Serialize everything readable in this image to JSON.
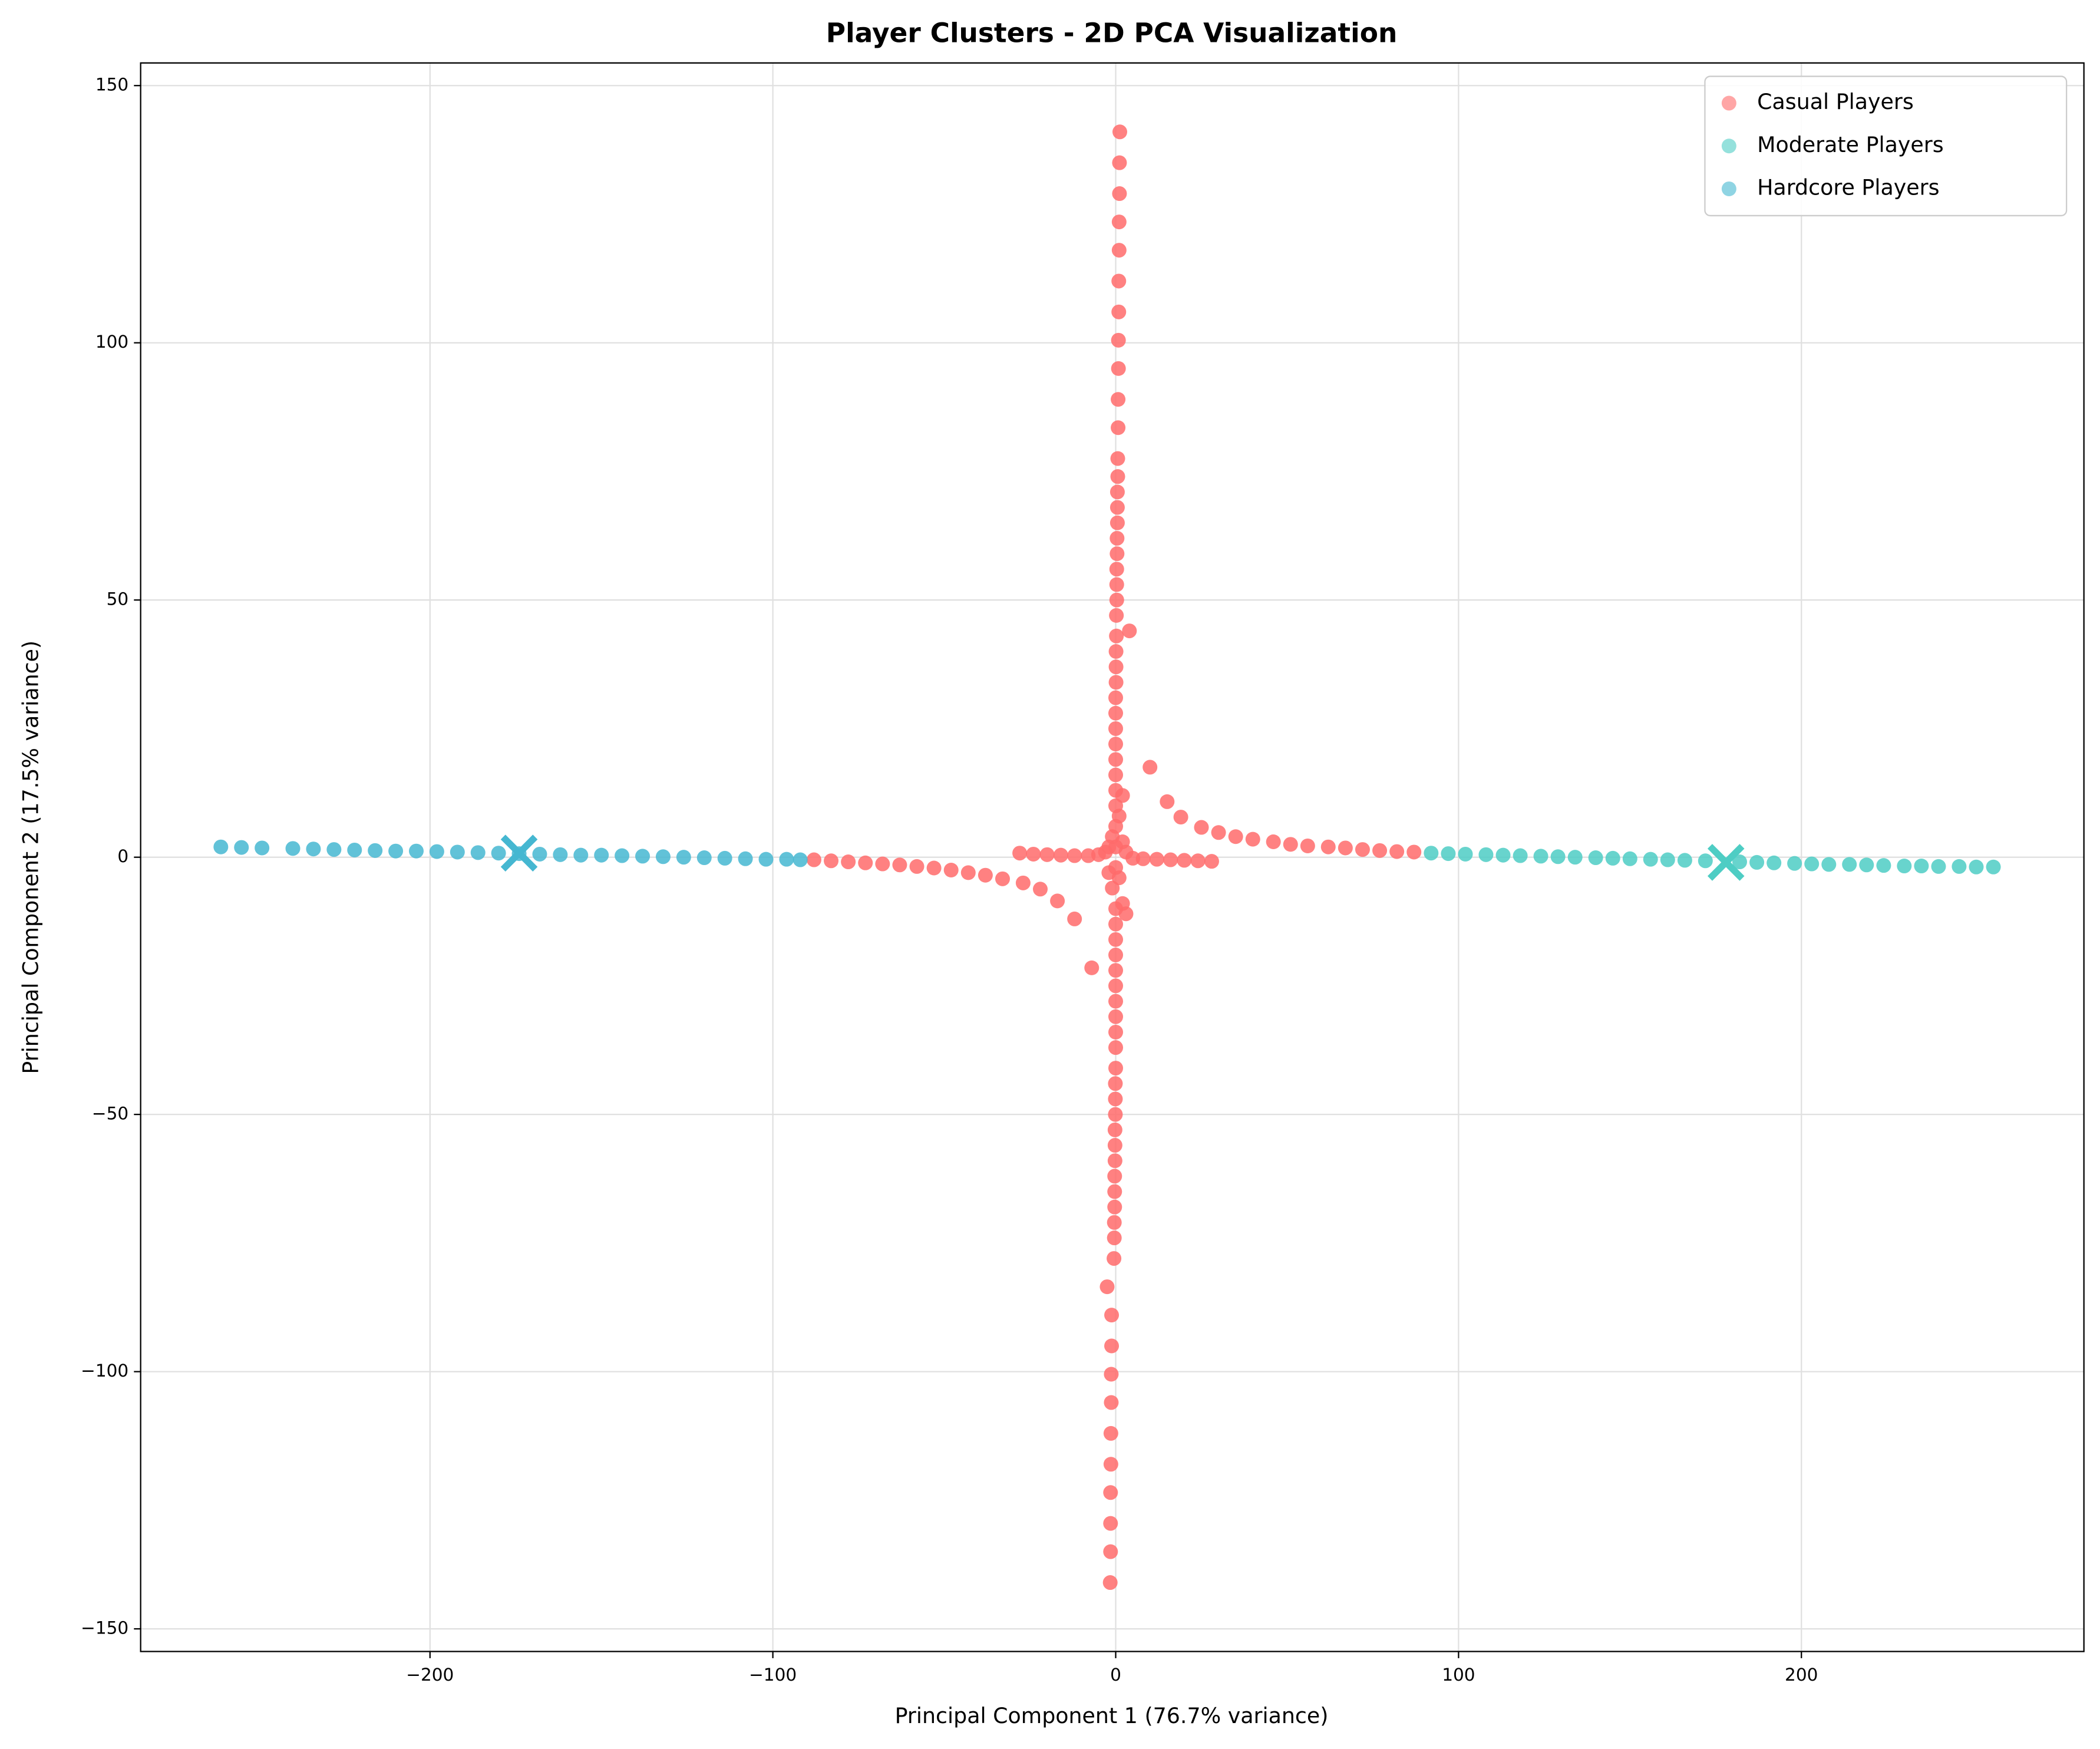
{
  "chart_data": {
    "type": "scatter",
    "title": "Player Clusters - 2D PCA Visualization",
    "xlabel": "Principal Component 1 (76.7% variance)",
    "ylabel": "Principal Component 2 (17.5% variance)",
    "xlim": [
      -284.4,
      282.4
    ],
    "ylim": [
      -154.4,
      154.4
    ],
    "xticks": [
      {
        "value": -200,
        "label": "−200"
      },
      {
        "value": -100,
        "label": "−100"
      },
      0,
      100,
      200
    ],
    "yticks": [
      {
        "value": -150,
        "label": "−150"
      },
      {
        "value": -100,
        "label": "−100"
      },
      {
        "value": -50,
        "label": "−50"
      },
      0,
      50,
      100,
      150
    ],
    "grid": true,
    "legend": "upper right",
    "series": [
      {
        "name": "Casual Players",
        "color": "#ff6b6b",
        "x": [
          1.2,
          1.1,
          1.1,
          1.0,
          1.0,
          0.9,
          0.9,
          0.8,
          0.8,
          0.7,
          0.7,
          0.6,
          0.6,
          0.5,
          0.5,
          0.5,
          0.4,
          0.4,
          0.3,
          0.3,
          0.3,
          0.2,
          0.2,
          0.1,
          0.1,
          0.1,
          0,
          0,
          0,
          0,
          0,
          0,
          0,
          0,
          4,
          -2.5,
          -1.2,
          -1.2,
          -1.3,
          -1.3,
          -1.4,
          -1.4,
          -1.5,
          -1.5,
          -1.5,
          -1.6,
          -0.5,
          -0.4,
          -0.4,
          -0.3,
          -0.3,
          -0.3,
          -0.2,
          -0.2,
          -0.2,
          -0.1,
          -0.1,
          -0.1,
          0,
          0,
          0,
          0,
          0,
          0,
          0,
          0,
          0,
          0,
          0,
          10,
          15,
          19,
          25,
          30,
          35,
          40,
          46,
          51,
          56,
          62,
          67,
          72,
          77,
          82,
          87,
          -7,
          -12,
          -17,
          -22,
          -27,
          -33,
          -38,
          -43,
          -48,
          -53,
          -58,
          -63,
          -68,
          -73,
          -78,
          -83,
          -88,
          -28,
          -24,
          -20,
          -16,
          -12,
          -8,
          -5,
          -3,
          -2,
          -1,
          0,
          1,
          2,
          3,
          5,
          8,
          12,
          16,
          20,
          24,
          28,
          -2,
          -1,
          1,
          2,
          3,
          2,
          0,
          0
        ],
        "y": [
          141,
          135,
          129,
          123.5,
          118,
          112,
          106,
          100.5,
          95,
          89,
          83.5,
          77.5,
          74,
          71,
          68,
          65,
          62,
          59,
          56,
          53,
          50,
          47,
          43,
          40,
          37,
          34,
          31,
          28,
          25,
          22,
          19,
          16,
          13,
          10,
          44,
          -83.5,
          -89,
          -95,
          -100.5,
          -106,
          -112,
          -118,
          -123.5,
          -129.5,
          -135,
          -141,
          -78,
          -74,
          -71,
          -68,
          -65,
          -62,
          -59,
          -56,
          -53,
          -50,
          -47,
          -44,
          -41,
          -37,
          -34,
          -31,
          -28,
          -25,
          -22,
          -19,
          -16,
          -13,
          -10,
          17.5,
          10.8,
          7.8,
          5.8,
          4.8,
          4,
          3.5,
          3,
          2.5,
          2.2,
          2,
          1.8,
          1.5,
          1.3,
          1.1,
          1,
          -21.5,
          -12,
          -8.5,
          -6.2,
          -5,
          -4.2,
          -3.5,
          -3,
          -2.5,
          -2.1,
          -1.8,
          -1.5,
          -1.3,
          -1.1,
          -0.9,
          -0.7,
          -0.5,
          0.8,
          0.6,
          0.5,
          0.4,
          0.3,
          0.3,
          0.5,
          1,
          2,
          4,
          6,
          8,
          3,
          1,
          -0.2,
          -0.3,
          -0.4,
          -0.5,
          -0.6,
          -0.7,
          -0.8,
          -3,
          -6,
          -4,
          -9,
          -11,
          12,
          2,
          -2
        ]
      },
      {
        "name": "Moderate Players",
        "color": "#4ecdc4",
        "centroid": [
          178,
          -1
        ],
        "x": [
          92,
          97,
          102,
          108,
          113,
          118,
          124,
          129,
          134,
          140,
          145,
          150,
          156,
          161,
          166,
          172,
          182,
          187,
          192,
          198,
          203,
          208,
          214,
          219,
          224,
          230,
          235,
          240,
          246,
          251,
          256
        ],
        "y": [
          0.8,
          0.7,
          0.6,
          0.5,
          0.4,
          0.3,
          0.2,
          0.1,
          0.0,
          -0.1,
          -0.2,
          -0.3,
          -0.4,
          -0.5,
          -0.6,
          -0.7,
          -0.9,
          -1.0,
          -1.1,
          -1.2,
          -1.3,
          -1.4,
          -1.4,
          -1.5,
          -1.6,
          -1.7,
          -1.7,
          -1.8,
          -1.8,
          -1.9,
          -1.9
        ]
      },
      {
        "name": "Hardcore Players",
        "color": "#45b7d1",
        "centroid": [
          -174,
          0.8
        ],
        "x": [
          -261,
          -255,
          -249,
          -240,
          -234,
          -228,
          -222,
          -216,
          -210,
          -204,
          -198,
          -192,
          -186,
          -180,
          -174,
          -168,
          -162,
          -156,
          -150,
          -144,
          -138,
          -132,
          -126,
          -120,
          -114,
          -108,
          -102,
          -96,
          -92
        ],
        "y": [
          2.0,
          1.9,
          1.8,
          1.7,
          1.6,
          1.5,
          1.4,
          1.3,
          1.2,
          1.2,
          1.1,
          1.0,
          0.9,
          0.8,
          0.7,
          0.6,
          0.5,
          0.4,
          0.4,
          0.3,
          0.2,
          0.1,
          0.0,
          -0.1,
          -0.2,
          -0.3,
          -0.4,
          -0.4,
          -0.5
        ]
      }
    ]
  }
}
